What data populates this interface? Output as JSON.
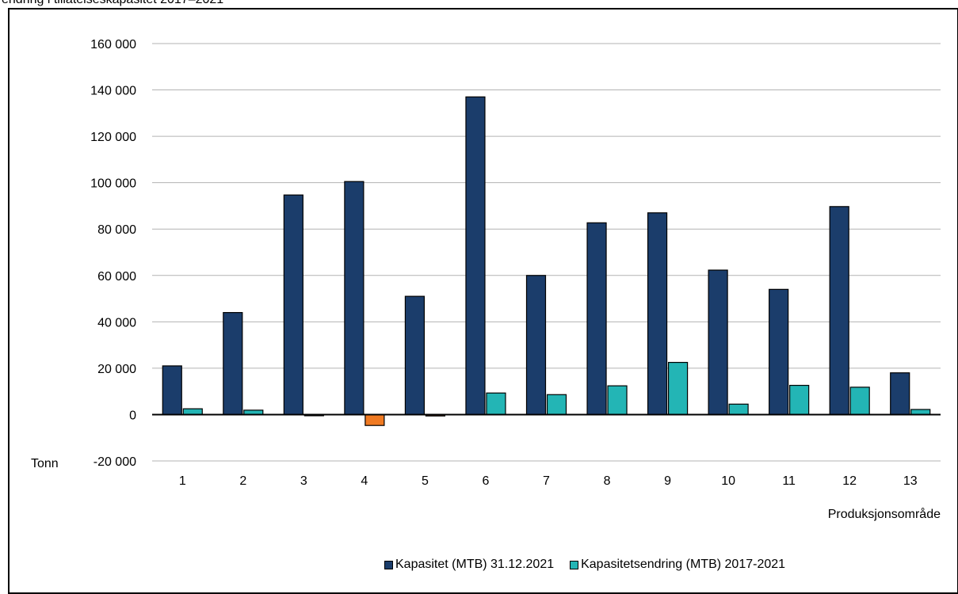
{
  "page_title_partial": "endring i tillatelseskapasitet 2017–2021",
  "colors": {
    "kapasitet": "#1b3d6b",
    "endring_positive": "#23b5b5",
    "endring_negative": "#f07a22",
    "grid": "#b3b3b3"
  },
  "chart_data": {
    "type": "bar",
    "categories": [
      "1",
      "2",
      "3",
      "4",
      "5",
      "6",
      "7",
      "8",
      "9",
      "10",
      "11",
      "12",
      "13"
    ],
    "series": [
      {
        "name": "Kapasitet (MTB) 31.12.2021",
        "values": [
          21000,
          44000,
          94700,
          100500,
          51000,
          137000,
          60000,
          82700,
          87000,
          62300,
          54000,
          89700,
          18000
        ]
      },
      {
        "name": "Kapasitetsendring (MTB) 2017-2021",
        "values": [
          2500,
          1900,
          -300,
          -4700,
          -600,
          9300,
          8600,
          12400,
          22500,
          4500,
          12600,
          11800,
          2200
        ]
      }
    ],
    "ylim": [
      -20000,
      160000
    ],
    "yticks": [
      -20000,
      0,
      20000,
      40000,
      60000,
      80000,
      100000,
      120000,
      140000,
      160000
    ],
    "ytick_labels": [
      "-20 000",
      "0",
      "20 000",
      "40 000",
      "60 000",
      "80 000",
      "100 000",
      "120 000",
      "140 000",
      "160 000"
    ],
    "ylabel": "Tonn",
    "xlabel": "Produksjonsområde",
    "grid": true,
    "legend_position": "bottom"
  }
}
